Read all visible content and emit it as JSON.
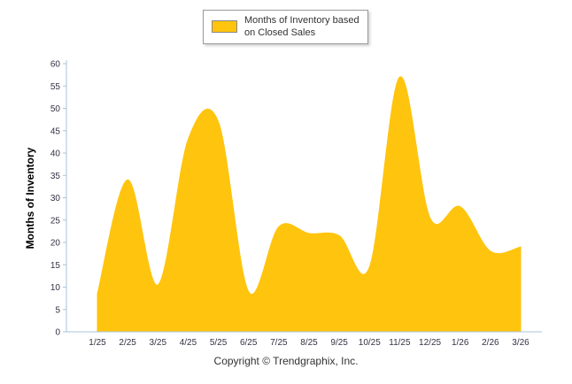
{
  "legend": {
    "lines": [
      "Months of Inventory based",
      "on Closed Sales"
    ]
  },
  "footer": {
    "copyright": "Copyright © Trendgraphix, Inc."
  },
  "chart_data": {
    "type": "area",
    "title": "",
    "legend": "Months of Inventory based on Closed Sales",
    "legend_position": "top",
    "xlabel": "",
    "ylabel": "Months of Inventory",
    "categories": [
      "1/25",
      "2/25",
      "3/25",
      "4/25",
      "5/25",
      "6/25",
      "7/25",
      "8/25",
      "9/25",
      "10/25",
      "11/25",
      "12/25",
      "1/26",
      "2/26",
      "3/26"
    ],
    "values": [
      8.5,
      34,
      10.5,
      43,
      47,
      9,
      23.5,
      22,
      21.5,
      14.5,
      57,
      25.5,
      28,
      18,
      19
    ],
    "ylim": [
      0,
      60
    ],
    "ytick_step": 5,
    "grid": false,
    "smooth": true,
    "colors": {
      "area": "#FFC40D",
      "axis": "#A8C3DB",
      "tick_text": "#333344",
      "title_text": "#000000"
    }
  }
}
